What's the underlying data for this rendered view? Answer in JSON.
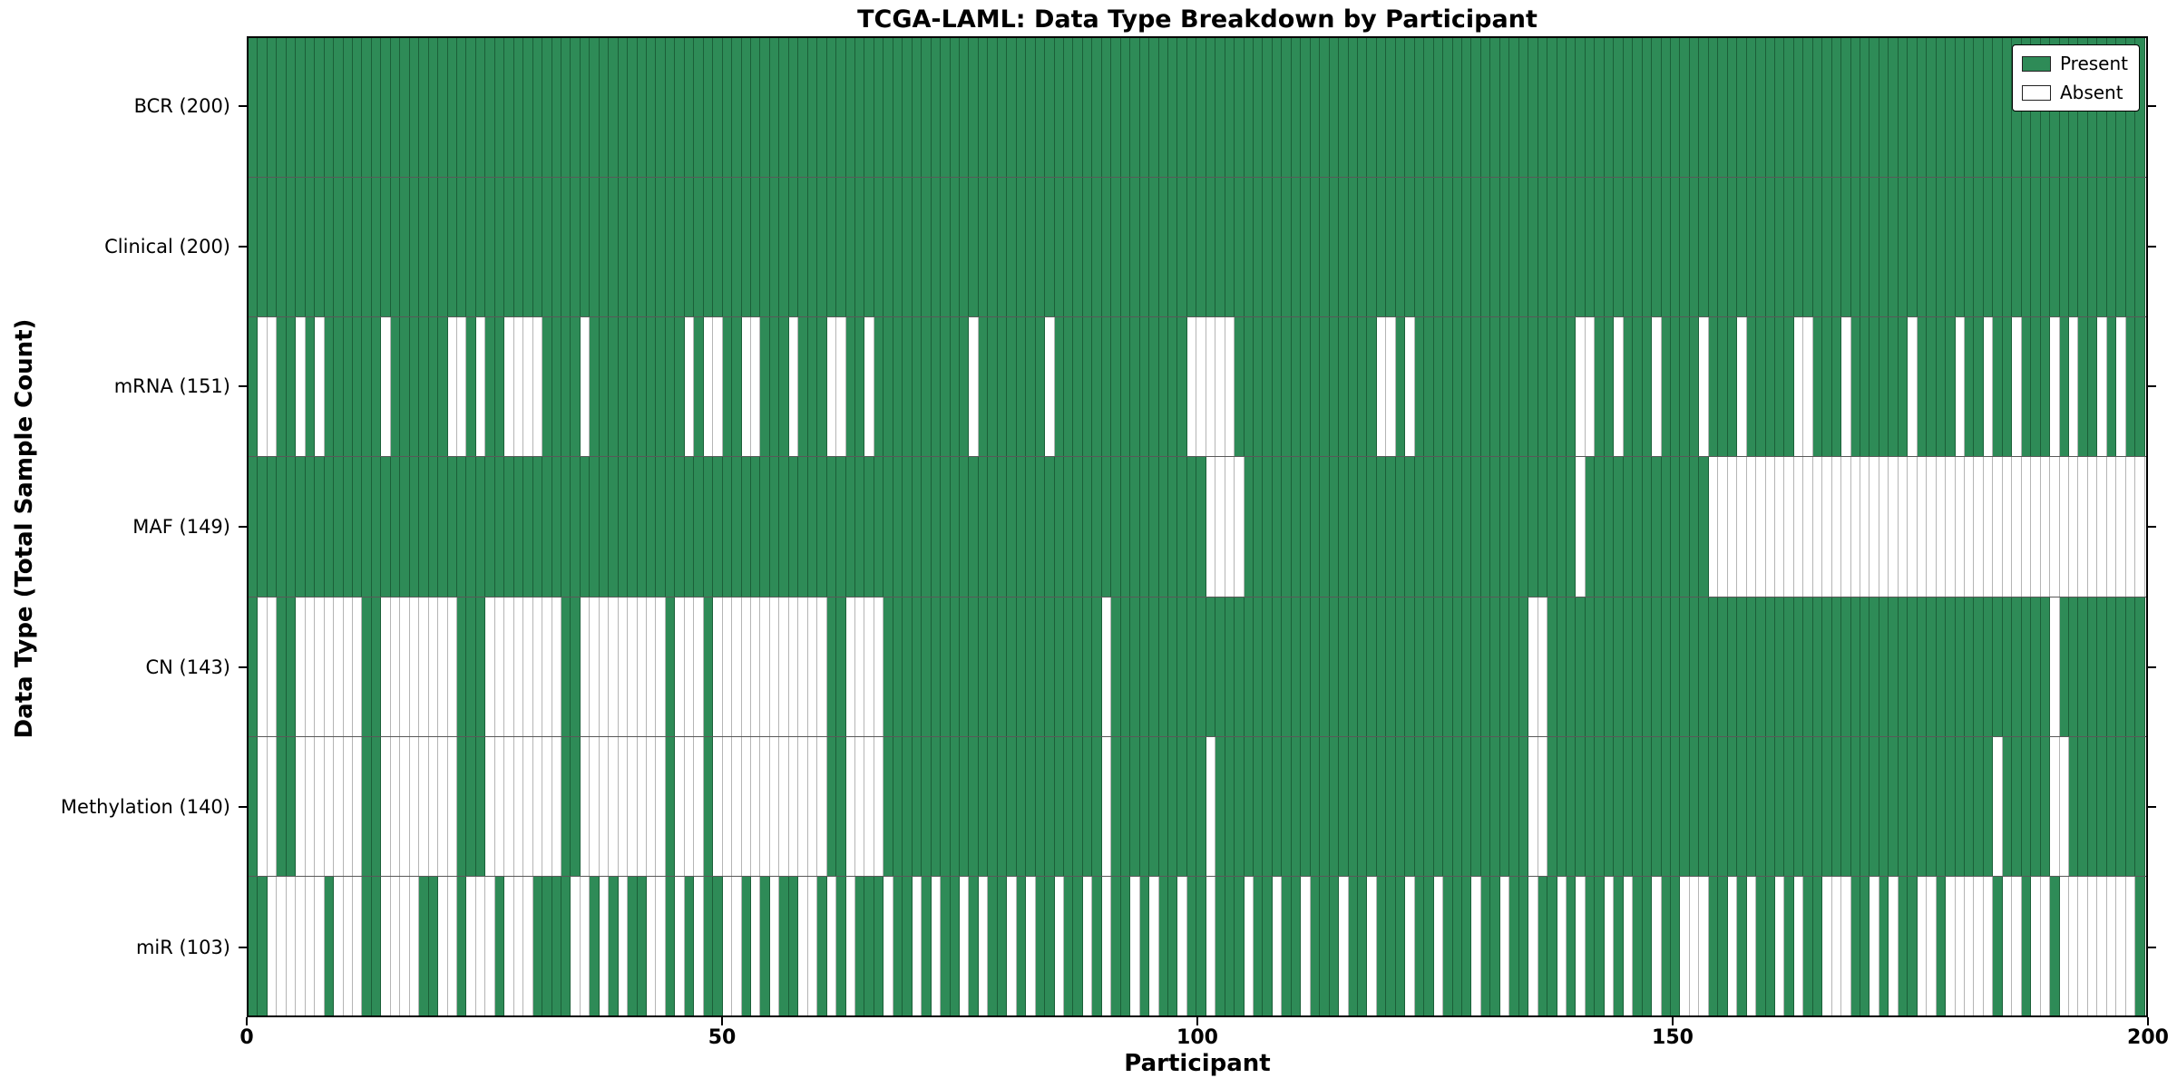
{
  "title": "TCGA-LAML: Data Type Breakdown by Participant",
  "x_axis_title": "Participant",
  "y_axis_title": "Data Type (Total Sample Count)",
  "colors": {
    "present": "#2E8B57",
    "absent": "#FFFFFF"
  },
  "legend": {
    "present_label": "Present",
    "absent_label": "Absent"
  },
  "chart_data": {
    "type": "heatmap",
    "title": "TCGA-LAML: Data Type Breakdown by Participant",
    "xlabel": "Participant",
    "ylabel": "Data Type (Total Sample Count)",
    "x_range": [
      0,
      200
    ],
    "n_participants": 200,
    "x_tick_labels": [
      "0",
      "50",
      "100",
      "150",
      "200"
    ],
    "x_tick_positions": [
      0,
      50,
      100,
      150,
      200
    ],
    "legend_entries": [
      "Present",
      "Absent"
    ],
    "legend_position": "upper right",
    "grid": false,
    "rows": [
      {
        "label": "BCR (200)",
        "present_count": 200,
        "pattern": [
          "1111111111",
          "1111111111",
          "1111111111",
          "1111111111",
          "1111111111",
          "1111111111",
          "1111111111",
          "1111111111",
          "1111111111",
          "1111111111",
          "1111111111",
          "1111111111",
          "1111111111",
          "1111111111",
          "1111111111",
          "1111111111",
          "1111111111",
          "1111111111",
          "1111111111",
          "1111111111"
        ]
      },
      {
        "label": "Clinical (200)",
        "present_count": 200,
        "pattern": [
          "1111111111",
          "1111111111",
          "1111111111",
          "1111111111",
          "1111111111",
          "1111111111",
          "1111111111",
          "1111111111",
          "1111111111",
          "1111111111",
          "1111111111",
          "1111111111",
          "1111111111",
          "1111111111",
          "1111111111",
          "1111111111",
          "1111111111",
          "1111111111",
          "1111111111",
          "1111111111"
        ]
      },
      {
        "label": "mRNA (151)",
        "present_count": 151,
        "pattern": [
          "1001101011",
          "1111011111",
          "1001011000",
          "0111101111",
          "1111110100",
          "1100111011",
          "1001101111",
          "1111110111",
          "1111011111",
          "1111111110",
          "0000111111",
          "1111111110",
          "0101111111",
          "1111111111",
          "0011011101",
          "1110111011",
          "1110011101",
          "1111101111",
          "0110110111",
          "0101101011"
        ]
      },
      {
        "label": "MAF (149)",
        "present_count": 149,
        "pattern": [
          "1111111111",
          "1111111111",
          "1111111111",
          "1111111111",
          "1111111111",
          "1111111111",
          "1111111111",
          "1111111111",
          "1111111111",
          "1111111111",
          "1000011111",
          "1111111111",
          "1111111111",
          "1111111111",
          "0111111111",
          "1111000000",
          "0000000000",
          "0000000000",
          "0000000000",
          "0000000000"
        ]
      },
      {
        "label": "CN (143)",
        "present_count": 143,
        "pattern": [
          "1001100000",
          "0011000000",
          "0011100000",
          "0001100000",
          "0000100010",
          "0000000000",
          "0110000111",
          "1111111111",
          "1111111111",
          "0111111111",
          "1111111111",
          "1111111111",
          "1111111111",
          "1111100111",
          "1111111111",
          "1111111111",
          "1111111111",
          "1111111111",
          "1111111111",
          "0111111111"
        ]
      },
      {
        "label": "Methylation (140)",
        "present_count": 140,
        "pattern": [
          "1001100000",
          "0011000000",
          "0011100000",
          "0001100000",
          "0000100010",
          "0000000000",
          "0110000111",
          "1111111111",
          "1111111111",
          "0111111111",
          "1011111111",
          "1111111111",
          "1111111111",
          "1111100111",
          "1111111111",
          "1111111111",
          "1111111111",
          "1111111111",
          "1111011111",
          "0011111111"
        ]
      },
      {
        "label": "miR (103)",
        "present_count": 103,
        "pattern": [
          "1100000010",
          "0011000011",
          "0010001000",
          "1111001010",
          "1100101011",
          "0010101100",
          "1010111011",
          "0101101011",
          "0101101101",
          "0110101101",
          "1011101101",
          "1011101101",
          "1101101110",
          "1101101101",
          "0110101101",
          "1000110101",
          "1010110001",
          "1010110010",
          "0000100100",
          "1000000001"
        ]
      }
    ]
  }
}
